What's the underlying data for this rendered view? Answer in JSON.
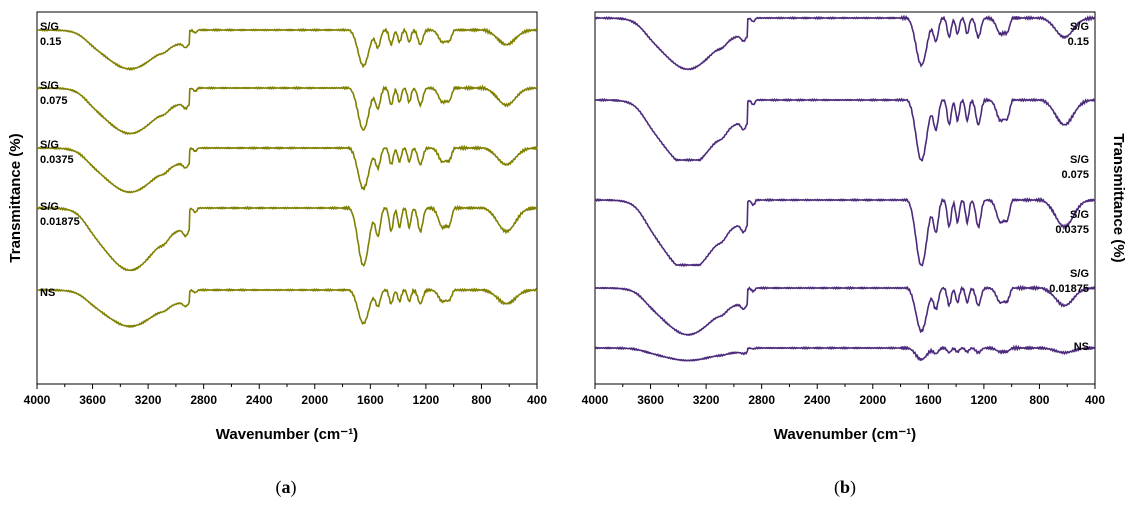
{
  "chart_data": [
    {
      "type": "line",
      "panel": "a",
      "color": "#808000",
      "xlabel": "Wavenumber (cm⁻¹)",
      "ylabel": "Transmittance (%)",
      "xlim": [
        4000,
        400
      ],
      "x_reversed": true,
      "x_ticks": [
        "4000",
        "3600",
        "3200",
        "2800",
        "2400",
        "2000",
        "1600",
        "1200",
        "800",
        "400"
      ],
      "y_ticks_shown": false,
      "label_side": "left",
      "series": [
        {
          "name": "S/G 0.15",
          "label_lines": [
            "S/G",
            "0.15"
          ],
          "start": 0.82,
          "depth": 0.3,
          "plateau": 0.52
        },
        {
          "name": "S/G 0.075",
          "label_lines": [
            "S/G",
            "0.075"
          ],
          "start": 0.78,
          "depth": 0.34,
          "plateau": 0.56
        },
        {
          "name": "S/G 0.0375",
          "label_lines": [
            "S/G",
            "0.0375"
          ],
          "start": 0.8,
          "depth": 0.33,
          "plateau": 0.52
        },
        {
          "name": "S/G 0.01875",
          "label_lines": [
            "S/G",
            "0.01875"
          ],
          "start": 0.78,
          "depth": 0.38,
          "plateau": 0.64
        },
        {
          "name": "NS",
          "label_lines": [
            "NS"
          ],
          "start": 0.85,
          "depth": 0.28,
          "plateau": 0.52
        }
      ]
    },
    {
      "type": "line",
      "panel": "b",
      "color": "#4b2a7b",
      "xlabel": "Wavenumber (cm⁻¹)",
      "ylabel": "Transmittance (%)",
      "xlim": [
        4000,
        400
      ],
      "x_reversed": true,
      "x_ticks": [
        "4000",
        "3600",
        "3200",
        "2800",
        "2400",
        "2000",
        "1600",
        "1200",
        "800",
        "400"
      ],
      "y_ticks_shown": false,
      "label_side": "right",
      "series": [
        {
          "name": "S/G 0.15",
          "label_lines": [
            "S/G",
            "0.15"
          ],
          "start": 0.62,
          "depth": 0.45,
          "plateau": 0.98
        },
        {
          "name": "S/G 0.075",
          "label_lines": [
            "S/G",
            "0.075"
          ],
          "start": 0.62,
          "depth": 0.55,
          "plateau": 0.92
        },
        {
          "name": "S/G 0.0375",
          "label_lines": [
            "S/G",
            "0.0375"
          ],
          "start": 0.62,
          "depth": 0.55,
          "plateau": 0.92
        },
        {
          "name": "S/G 0.01875",
          "label_lines": [
            "S/G",
            "0.01875"
          ],
          "start": 0.45,
          "depth": 0.45,
          "plateau": 0.8
        },
        {
          "name": "NS",
          "label_lines": [
            "NS"
          ],
          "start": 0.22,
          "depth": 0.25,
          "plateau": 0.25
        }
      ]
    }
  ],
  "panel_labels": [
    "(a)",
    "(b)"
  ]
}
